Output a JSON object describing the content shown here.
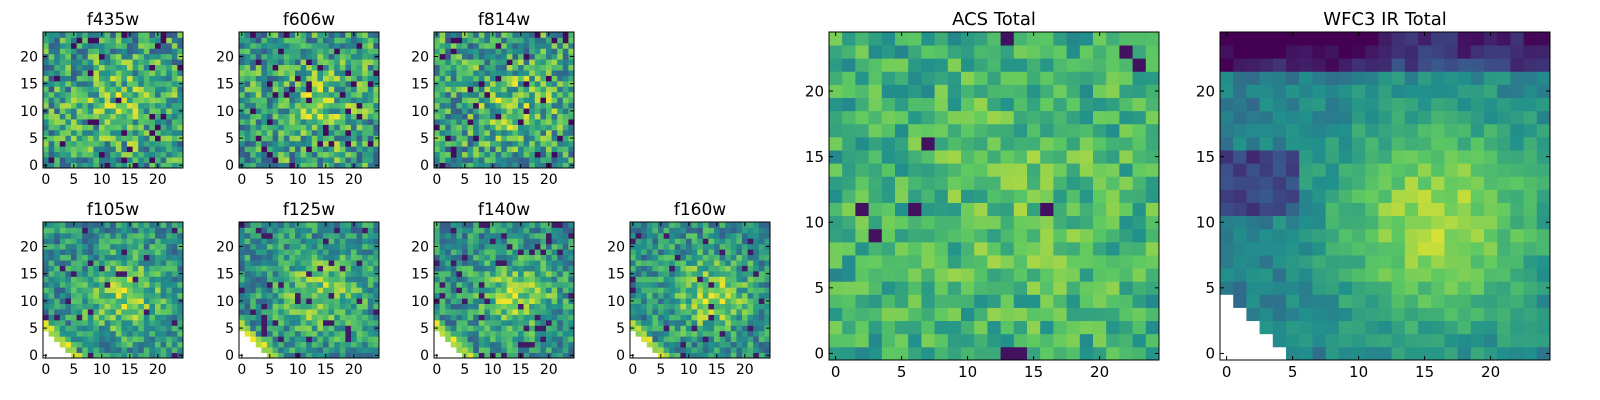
{
  "colormap": [
    "#440154",
    "#3b528b",
    "#21918c",
    "#5ec962",
    "#fde725"
  ],
  "chart_data": [
    {
      "type": "heatmap",
      "title": "f435w",
      "xlabel": "",
      "ylabel": "",
      "grid_size": 25,
      "xlim": [
        0,
        25
      ],
      "ylim": [
        0,
        25
      ],
      "xticks": [
        0,
        5,
        10,
        15,
        20
      ],
      "yticks": [
        0,
        5,
        10,
        15,
        20
      ],
      "pattern": "noise",
      "seed": 11
    },
    {
      "type": "heatmap",
      "title": "f606w",
      "xlabel": "",
      "ylabel": "",
      "grid_size": 25,
      "xlim": [
        0,
        25
      ],
      "ylim": [
        0,
        25
      ],
      "xticks": [
        0,
        5,
        10,
        15,
        20
      ],
      "yticks": [
        0,
        5,
        10,
        15,
        20
      ],
      "pattern": "noise",
      "seed": 23
    },
    {
      "type": "heatmap",
      "title": "f814w",
      "xlabel": "",
      "ylabel": "",
      "grid_size": 25,
      "xlim": [
        0,
        25
      ],
      "ylim": [
        0,
        25
      ],
      "xticks": [
        0,
        5,
        10,
        15,
        20
      ],
      "yticks": [
        0,
        5,
        10,
        15,
        20
      ],
      "pattern": "noise",
      "seed": 37
    },
    {
      "type": "heatmap",
      "title": "f105w",
      "xlabel": "",
      "ylabel": "",
      "grid_size": 25,
      "xlim": [
        0,
        25
      ],
      "ylim": [
        0,
        25
      ],
      "xticks": [
        0,
        5,
        10,
        15,
        20
      ],
      "yticks": [
        0,
        5,
        10,
        15,
        20
      ],
      "pattern": "blob",
      "seed": 41
    },
    {
      "type": "heatmap",
      "title": "f125w",
      "xlabel": "",
      "ylabel": "",
      "grid_size": 25,
      "xlim": [
        0,
        25
      ],
      "ylim": [
        0,
        25
      ],
      "xticks": [
        0,
        5,
        10,
        15,
        20
      ],
      "yticks": [
        0,
        5,
        10,
        15,
        20
      ],
      "pattern": "blob",
      "seed": 53
    },
    {
      "type": "heatmap",
      "title": "f140w",
      "xlabel": "",
      "ylabel": "",
      "grid_size": 25,
      "xlim": [
        0,
        25
      ],
      "ylim": [
        0,
        25
      ],
      "xticks": [
        0,
        5,
        10,
        15,
        20
      ],
      "yticks": [
        0,
        5,
        10,
        15,
        20
      ],
      "pattern": "blob",
      "seed": 67
    },
    {
      "type": "heatmap",
      "title": "f160w",
      "xlabel": "",
      "ylabel": "",
      "grid_size": 25,
      "xlim": [
        0,
        25
      ],
      "ylim": [
        0,
        25
      ],
      "xticks": [
        0,
        5,
        10,
        15,
        20
      ],
      "yticks": [
        0,
        5,
        10,
        15,
        20
      ],
      "pattern": "blob",
      "seed": 79
    },
    {
      "type": "heatmap",
      "title": "ACS Total",
      "xlabel": "",
      "ylabel": "",
      "grid_size": 25,
      "xlim": [
        0,
        25
      ],
      "ylim": [
        0,
        25
      ],
      "xticks": [
        0,
        5,
        10,
        15,
        20
      ],
      "yticks": [
        0,
        5,
        10,
        15,
        20
      ],
      "pattern": "smooth",
      "seed": 97
    },
    {
      "type": "heatmap",
      "title": "WFC3 IR Total",
      "xlabel": "",
      "ylabel": "",
      "grid_size": 25,
      "xlim": [
        0,
        25
      ],
      "ylim": [
        0,
        25
      ],
      "xticks": [
        0,
        5,
        10,
        15,
        20
      ],
      "yticks": [
        0,
        5,
        10,
        15,
        20
      ],
      "pattern": "ir",
      "seed": 103
    }
  ]
}
